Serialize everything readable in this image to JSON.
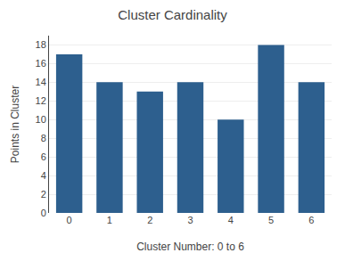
{
  "chart_data": {
    "type": "bar",
    "title": "Cluster Cardinality",
    "xlabel": "Cluster Number: 0 to 6",
    "ylabel": "Points in Cluster",
    "categories": [
      0,
      1,
      2,
      3,
      4,
      5,
      6
    ],
    "values": [
      17,
      14,
      13,
      14,
      10,
      18,
      14
    ],
    "color": "#2d5f8e",
    "ylim": [
      0,
      19
    ],
    "yticks": [
      0,
      2,
      4,
      6,
      8,
      10,
      12,
      14,
      16,
      18
    ],
    "grid": true
  }
}
